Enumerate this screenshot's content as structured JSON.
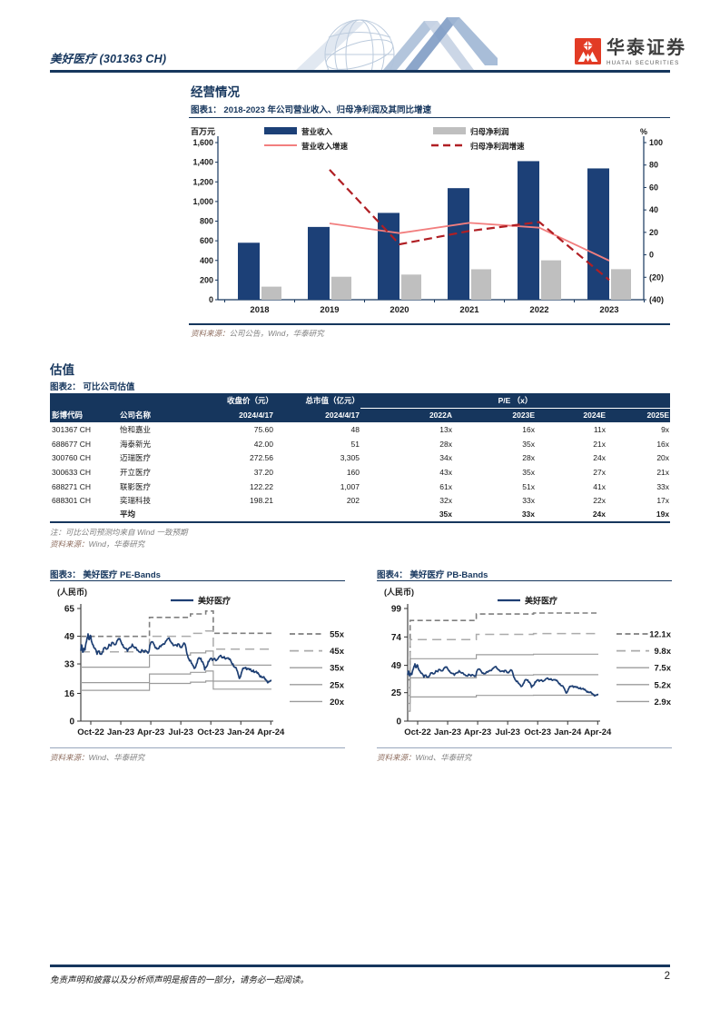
{
  "header": {
    "company_title": "美好医疗 (301363 CH)",
    "brand_cn": "华泰证券",
    "brand_en": "HUATAI SECURITIES"
  },
  "sections": {
    "operations": "经营情况",
    "valuation": "估值"
  },
  "figure1": {
    "caption": "图表1：  2018-2023 年公司营业收入、归母净利润及其同比增速",
    "source_label": "资料来源：",
    "source_text": "公司公告，Wind，华泰研究"
  },
  "figure2": {
    "caption": "图表2：  可比公司估值",
    "note": "注：可比公司预测均来自 Wind 一致预期",
    "source_label": "资料来源：",
    "source_text": "Wind，华泰研究",
    "table": {
      "group_close": "收盘价（元）",
      "group_mcap": "总市值（亿元）",
      "group_pe": "P/E （x）",
      "headers": [
        "彭博代码",
        "公司名称",
        "2024/4/17",
        "2024/4/17",
        "2022A",
        "2023E",
        "2024E",
        "2025E"
      ],
      "rows": [
        [
          "301367 CH",
          "怡和嘉业",
          "75.60",
          "48",
          "13x",
          "16x",
          "11x",
          "9x"
        ],
        [
          "688677 CH",
          "海泰新光",
          "42.00",
          "51",
          "28x",
          "35x",
          "21x",
          "16x"
        ],
        [
          "300760 CH",
          "迈瑞医疗",
          "272.56",
          "3,305",
          "34x",
          "28x",
          "24x",
          "20x"
        ],
        [
          "300633 CH",
          "开立医疗",
          "37.20",
          "160",
          "43x",
          "35x",
          "27x",
          "21x"
        ],
        [
          "688271 CH",
          "联影医疗",
          "122.22",
          "1,007",
          "61x",
          "51x",
          "41x",
          "33x"
        ],
        [
          "688301 CH",
          "奕瑞科技",
          "198.21",
          "202",
          "32x",
          "33x",
          "22x",
          "17x"
        ]
      ],
      "avg_row": [
        "",
        "平均",
        "",
        "",
        "35x",
        "33x",
        "24x",
        "19x"
      ]
    }
  },
  "figure3": {
    "caption": "图表3：  美好医疗 PE-Bands",
    "source_label": "资料来源：",
    "source_text": "Wind、华泰研究"
  },
  "figure4": {
    "caption": "图表4：  美好医疗 PB-Bands",
    "source_label": "资料来源：",
    "source_text": "Wind、华泰研究"
  },
  "footer": {
    "disclaimer": "免责声明和披露以及分析师声明是报告的一部分，请务必一起阅读。",
    "page_number": "2"
  },
  "chart_data": [
    {
      "type": "bar",
      "title": "2018-2023 年公司营业收入、归母净利润及其同比增速",
      "unit_left": "百万元",
      "unit_right": "%",
      "categories": [
        "2018",
        "2019",
        "2020",
        "2021",
        "2022",
        "2023"
      ],
      "series": [
        {
          "name": "营业收入",
          "type": "bar",
          "color": "#1C4077",
          "axis": "left",
          "values": [
            580,
            741,
            884,
            1136,
            1411,
            1337
          ]
        },
        {
          "name": "归母净利润",
          "type": "bar",
          "color": "#BFBFBF",
          "axis": "left",
          "values": [
            133,
            234,
            256,
            310,
            401,
            311
          ]
        },
        {
          "name": "营业收入增速",
          "type": "line",
          "color": "#F27E7E",
          "axis": "right",
          "values": [
            null,
            28.0,
            19.3,
            28.5,
            24.2,
            -5.2
          ]
        },
        {
          "name": "归母净利润增速",
          "type": "line-dashed",
          "color": "#B01F24",
          "axis": "right",
          "values": [
            null,
            75.8,
            9.4,
            21.3,
            29.2,
            -22.4
          ]
        }
      ],
      "left_axis": {
        "min": 0,
        "max": 1600,
        "step": 200
      },
      "right_axis": {
        "min": -40,
        "max": 100,
        "step": 20
      }
    },
    {
      "type": "line",
      "title": "美好医疗 PE-Bands",
      "unit": "(人民币)",
      "legend": "美好医疗",
      "price_color": "#1E3F73",
      "noise": 0.8,
      "y_ticks": [
        0,
        16,
        33,
        49,
        65
      ],
      "x_ticks": [
        "Oct-22",
        "Jan-23",
        "Apr-23",
        "Jul-23",
        "Oct-23",
        "Jan-24",
        "Apr-24"
      ],
      "bands": [
        {
          "label": "55x",
          "mult": 55,
          "style": "dashed-dark"
        },
        {
          "label": "45x",
          "mult": 45,
          "style": "dashed-light"
        },
        {
          "label": "35x",
          "mult": 35,
          "style": "solid"
        },
        {
          "label": "25x",
          "mult": 25,
          "style": "solid"
        },
        {
          "label": "20x",
          "mult": 20,
          "style": "solid"
        }
      ],
      "base_steps": [
        {
          "f": 0,
          "v": 0.889
        },
        {
          "f": 0.36,
          "v": 1.088
        },
        {
          "f": 0.575,
          "v": 1.125
        },
        {
          "f": 0.655,
          "v": 1.155
        },
        {
          "f": 0.695,
          "v": 0.922
        }
      ],
      "price": [
        [
          0.0,
          40.5
        ],
        [
          0.004,
          44.0
        ],
        [
          0.01,
          39.8
        ],
        [
          0.016,
          42.0
        ],
        [
          0.022,
          41.0
        ],
        [
          0.03,
          46.0
        ],
        [
          0.038,
          50.3
        ],
        [
          0.044,
          47.0
        ],
        [
          0.05,
          49.5
        ],
        [
          0.056,
          46.0
        ],
        [
          0.065,
          44.0
        ],
        [
          0.075,
          42.0
        ],
        [
          0.085,
          38.6
        ],
        [
          0.095,
          40.5
        ],
        [
          0.105,
          38.8
        ],
        [
          0.115,
          40.0
        ],
        [
          0.125,
          42.3
        ],
        [
          0.135,
          41.5
        ],
        [
          0.148,
          44.3
        ],
        [
          0.158,
          43.4
        ],
        [
          0.168,
          45.3
        ],
        [
          0.178,
          44.2
        ],
        [
          0.19,
          46.4
        ],
        [
          0.2,
          47.3
        ],
        [
          0.21,
          46.0
        ],
        [
          0.22,
          44.1
        ],
        [
          0.232,
          42.0
        ],
        [
          0.245,
          40.3
        ],
        [
          0.258,
          42.6
        ],
        [
          0.27,
          44.4
        ],
        [
          0.282,
          42.2
        ],
        [
          0.295,
          41.0
        ],
        [
          0.308,
          40.0
        ],
        [
          0.32,
          41.2
        ],
        [
          0.332,
          39.7
        ],
        [
          0.345,
          40.2
        ],
        [
          0.355,
          39.6
        ],
        [
          0.362,
          43.6
        ],
        [
          0.372,
          45.6
        ],
        [
          0.385,
          44.0
        ],
        [
          0.395,
          42.4
        ],
        [
          0.408,
          41.8
        ],
        [
          0.42,
          43.0
        ],
        [
          0.432,
          44.6
        ],
        [
          0.445,
          46.2
        ],
        [
          0.458,
          47.6
        ],
        [
          0.468,
          46.3
        ],
        [
          0.48,
          45.0
        ],
        [
          0.492,
          44.0
        ],
        [
          0.505,
          43.2
        ],
        [
          0.515,
          44.4
        ],
        [
          0.525,
          42.8
        ],
        [
          0.535,
          43.8
        ],
        [
          0.545,
          44.6
        ],
        [
          0.552,
          42.0
        ],
        [
          0.56,
          38.0
        ],
        [
          0.57,
          34.8
        ],
        [
          0.58,
          33.4
        ],
        [
          0.59,
          32.0
        ],
        [
          0.6,
          30.8
        ],
        [
          0.61,
          33.6
        ],
        [
          0.62,
          36.6
        ],
        [
          0.63,
          36.2
        ],
        [
          0.64,
          34.0
        ],
        [
          0.65,
          29.6
        ],
        [
          0.658,
          31.2
        ],
        [
          0.668,
          34.4
        ],
        [
          0.678,
          35.8
        ],
        [
          0.69,
          35.0
        ],
        [
          0.702,
          36.2
        ],
        [
          0.715,
          35.6
        ],
        [
          0.728,
          37.3
        ],
        [
          0.74,
          36.6
        ],
        [
          0.752,
          37.2
        ],
        [
          0.765,
          36.4
        ],
        [
          0.778,
          35.6
        ],
        [
          0.788,
          34.4
        ],
        [
          0.798,
          33.0
        ],
        [
          0.808,
          31.0
        ],
        [
          0.818,
          29.4
        ],
        [
          0.828,
          26.0
        ],
        [
          0.835,
          25.2
        ],
        [
          0.845,
          28.6
        ],
        [
          0.855,
          30.4
        ],
        [
          0.865,
          31.0
        ],
        [
          0.875,
          30.4
        ],
        [
          0.885,
          29.6
        ],
        [
          0.895,
          28.8
        ],
        [
          0.905,
          29.4
        ],
        [
          0.915,
          28.4
        ],
        [
          0.925,
          27.6
        ],
        [
          0.935,
          26.8
        ],
        [
          0.945,
          26.0
        ],
        [
          0.955,
          25.2
        ],
        [
          0.965,
          24.2
        ],
        [
          0.975,
          23.4
        ],
        [
          0.985,
          22.8
        ],
        [
          1.0,
          23.3
        ]
      ]
    },
    {
      "type": "line",
      "title": "美好医疗 PB-Bands",
      "unit": "(人民币)",
      "legend": "美好医疗",
      "price_color": "#1E3F73",
      "noise": 0.8,
      "y_ticks": [
        0,
        25,
        49,
        74,
        99
      ],
      "x_ticks": [
        "Oct-22",
        "Jan-23",
        "Apr-23",
        "Jul-23",
        "Oct-23",
        "Jan-24",
        "Apr-24"
      ],
      "bands": [
        {
          "label": "12.1x",
          "mult": 12.1,
          "style": "dashed-dark"
        },
        {
          "label": "9.8x",
          "mult": 9.8,
          "style": "dashed-light"
        },
        {
          "label": "7.5x",
          "mult": 7.5,
          "style": "solid"
        },
        {
          "label": "5.2x",
          "mult": 5.2,
          "style": "solid"
        },
        {
          "label": "2.9x",
          "mult": 2.9,
          "style": "solid"
        }
      ],
      "base_steps": [
        {
          "f": 0,
          "v": 3.0
        },
        {
          "f": 0.013,
          "v": 7.31
        },
        {
          "f": 0.36,
          "v": 7.78
        },
        {
          "f": 0.66,
          "v": 7.85
        }
      ],
      "price": [
        [
          0.0,
          40.5
        ],
        [
          0.004,
          44.0
        ],
        [
          0.01,
          39.8
        ],
        [
          0.016,
          42.0
        ],
        [
          0.022,
          41.0
        ],
        [
          0.03,
          46.0
        ],
        [
          0.038,
          50.3
        ],
        [
          0.044,
          47.0
        ],
        [
          0.05,
          49.5
        ],
        [
          0.056,
          46.0
        ],
        [
          0.065,
          44.0
        ],
        [
          0.075,
          42.0
        ],
        [
          0.085,
          38.6
        ],
        [
          0.095,
          40.5
        ],
        [
          0.105,
          38.8
        ],
        [
          0.115,
          40.0
        ],
        [
          0.125,
          42.3
        ],
        [
          0.135,
          41.5
        ],
        [
          0.148,
          44.3
        ],
        [
          0.158,
          43.4
        ],
        [
          0.168,
          45.3
        ],
        [
          0.178,
          44.2
        ],
        [
          0.19,
          46.4
        ],
        [
          0.2,
          47.3
        ],
        [
          0.21,
          46.0
        ],
        [
          0.22,
          44.1
        ],
        [
          0.232,
          42.0
        ],
        [
          0.245,
          40.3
        ],
        [
          0.258,
          42.6
        ],
        [
          0.27,
          44.4
        ],
        [
          0.282,
          42.2
        ],
        [
          0.295,
          41.0
        ],
        [
          0.308,
          40.0
        ],
        [
          0.32,
          41.2
        ],
        [
          0.332,
          39.7
        ],
        [
          0.345,
          40.2
        ],
        [
          0.355,
          39.6
        ],
        [
          0.362,
          43.6
        ],
        [
          0.372,
          45.6
        ],
        [
          0.385,
          44.0
        ],
        [
          0.395,
          42.4
        ],
        [
          0.408,
          41.8
        ],
        [
          0.42,
          43.0
        ],
        [
          0.432,
          44.6
        ],
        [
          0.445,
          46.2
        ],
        [
          0.458,
          47.6
        ],
        [
          0.468,
          46.3
        ],
        [
          0.48,
          45.0
        ],
        [
          0.492,
          44.0
        ],
        [
          0.505,
          43.2
        ],
        [
          0.515,
          44.4
        ],
        [
          0.525,
          42.8
        ],
        [
          0.535,
          43.8
        ],
        [
          0.545,
          44.6
        ],
        [
          0.552,
          42.0
        ],
        [
          0.56,
          38.0
        ],
        [
          0.57,
          34.8
        ],
        [
          0.58,
          33.4
        ],
        [
          0.59,
          32.0
        ],
        [
          0.6,
          30.8
        ],
        [
          0.61,
          33.6
        ],
        [
          0.62,
          36.6
        ],
        [
          0.63,
          36.2
        ],
        [
          0.64,
          34.0
        ],
        [
          0.65,
          29.6
        ],
        [
          0.658,
          31.2
        ],
        [
          0.668,
          34.4
        ],
        [
          0.678,
          35.8
        ],
        [
          0.69,
          35.0
        ],
        [
          0.702,
          36.2
        ],
        [
          0.715,
          35.6
        ],
        [
          0.728,
          37.3
        ],
        [
          0.74,
          36.6
        ],
        [
          0.752,
          37.2
        ],
        [
          0.765,
          36.4
        ],
        [
          0.778,
          35.6
        ],
        [
          0.788,
          34.4
        ],
        [
          0.798,
          33.0
        ],
        [
          0.808,
          31.0
        ],
        [
          0.818,
          29.4
        ],
        [
          0.828,
          26.0
        ],
        [
          0.835,
          25.2
        ],
        [
          0.845,
          28.6
        ],
        [
          0.855,
          30.4
        ],
        [
          0.865,
          31.0
        ],
        [
          0.875,
          30.4
        ],
        [
          0.885,
          29.6
        ],
        [
          0.895,
          28.8
        ],
        [
          0.905,
          29.4
        ],
        [
          0.915,
          28.4
        ],
        [
          0.925,
          27.6
        ],
        [
          0.935,
          26.8
        ],
        [
          0.945,
          26.0
        ],
        [
          0.955,
          25.2
        ],
        [
          0.965,
          24.2
        ],
        [
          0.975,
          23.4
        ],
        [
          0.985,
          22.8
        ],
        [
          1.0,
          23.3
        ]
      ]
    }
  ]
}
